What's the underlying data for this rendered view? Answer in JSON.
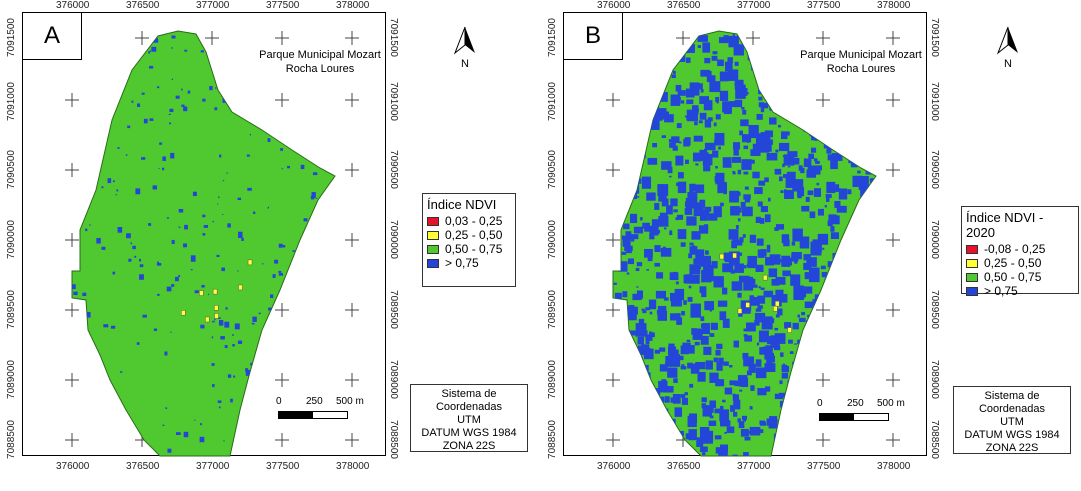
{
  "panels": [
    {
      "letter": "A",
      "title_line1": "Parque Municipal Mozart",
      "title_line2": "Rocha Loures",
      "north_label": "N",
      "x_ticks": [
        "376000",
        "376500",
        "377000",
        "377500",
        "378000"
      ],
      "y_ticks": [
        "7091500",
        "7091000",
        "7090500",
        "7090000",
        "7089500",
        "7089000",
        "7088500"
      ],
      "legend": {
        "title": "Índice NDVI",
        "items": [
          {
            "label": "0,03 - 0,25",
            "color": "#e8112d"
          },
          {
            "label": "0,25 - 0,50",
            "color": "#ffff33"
          },
          {
            "label": "0,50 - 0,75",
            "color": "#4fc92f"
          },
          {
            "label": "> 0,75",
            "color": "#2446d8"
          }
        ]
      },
      "scale": {
        "l0": "0",
        "l1": "250",
        "l2": "500 m"
      },
      "coords": [
        "Sistema de Coordenadas",
        "UTM",
        "DATUM WGS 1984",
        "ZONA 22S"
      ],
      "blue_fraction": 0.12
    },
    {
      "letter": "B",
      "title_line1": "Parque Municipal Mozart",
      "title_line2": "Rocha Loures",
      "north_label": "N",
      "x_ticks": [
        "376000",
        "376500",
        "377000",
        "377500",
        "378000"
      ],
      "y_ticks": [
        "7091500",
        "7091000",
        "7090500",
        "7090000",
        "7089500",
        "7089000",
        "7088500"
      ],
      "legend": {
        "title": "Índice NDVI - 2020",
        "items": [
          {
            "label": "-0,08 - 0,25",
            "color": "#e8112d"
          },
          {
            "label": "0,25 - 0,50",
            "color": "#ffff33"
          },
          {
            "label": "0,50 - 0,75",
            "color": "#4fc92f"
          },
          {
            "label": "> 0,75",
            "color": "#2446d8"
          }
        ]
      },
      "scale": {
        "l0": "0",
        "l1": "250",
        "l2": "500 m"
      },
      "coords": [
        "Sistema de Coordenadas",
        "UTM",
        "DATUM WGS 1984",
        "ZONA 22S"
      ],
      "blue_fraction": 0.45
    }
  ]
}
